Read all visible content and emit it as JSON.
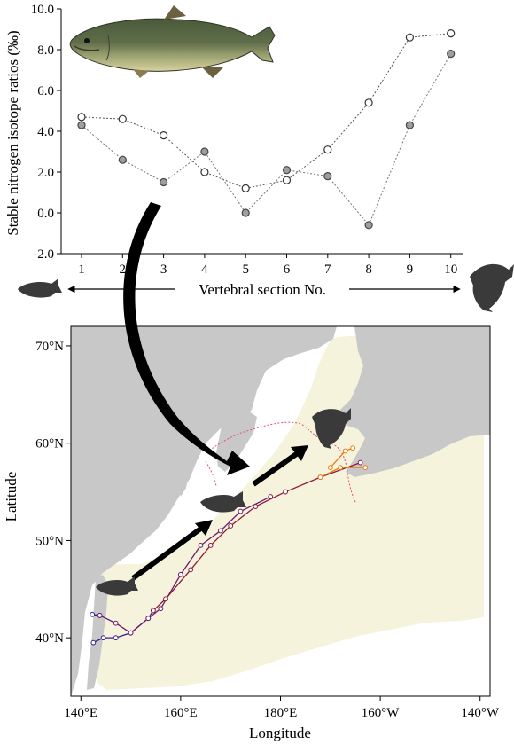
{
  "chart_data": [
    {
      "type": "line",
      "ylabel": "Stable nitrogen isotope ratios (‰)",
      "xlabel": "Vertebral section No.",
      "categories": [
        "1",
        "2",
        "3",
        "4",
        "5",
        "6",
        "7",
        "8",
        "9",
        "10"
      ],
      "yticks": [
        "-2.0",
        "0.0",
        "2.0",
        "4.0",
        "6.0",
        "8.0",
        "10.0"
      ],
      "ylim": [
        -2.0,
        10.0
      ],
      "series": [
        {
          "marker": "open-circle",
          "values": [
            4.7,
            4.6,
            3.8,
            2.0,
            1.2,
            1.6,
            3.1,
            5.4,
            8.6,
            8.8
          ]
        },
        {
          "marker": "filled-circle",
          "values": [
            4.3,
            2.6,
            1.5,
            3.0,
            0.0,
            2.1,
            1.8,
            -0.6,
            4.3,
            7.8
          ]
        }
      ],
      "line_style": "dotted",
      "colors": {
        "open": "#555555",
        "filled": "#777777",
        "filled_fill": "#9e9e9e"
      }
    },
    {
      "type": "line",
      "xlabel": "Longitude",
      "ylabel": "Latitude",
      "xticks": [
        "140°E",
        "160°E",
        "180°E",
        "160°W",
        "140°W"
      ],
      "yticks": [
        "40°N",
        "50°N",
        "60°N",
        "70°N"
      ],
      "xlim": [
        138,
        222
      ],
      "ylim": [
        34,
        72
      ],
      "tracks": [
        {
          "color": "#3b1e8c",
          "points": [
            [
              142.3,
              42.4
            ],
            [
              143.8,
              42.3
            ]
          ]
        },
        {
          "color": "#3b1e8c",
          "points": [
            [
              142.5,
              39.5
            ],
            [
              144.5,
              40.0
            ],
            [
              147,
              40.0
            ],
            [
              150,
              40.5
            ],
            [
              153.5,
              42.0
            ],
            [
              154.5,
              42.8
            ]
          ]
        },
        {
          "color": "#6b1a6b",
          "points": [
            [
              143.8,
              42.3
            ],
            [
              147,
              41.5
            ],
            [
              150,
              40.5
            ],
            [
              153.5,
              42.0
            ],
            [
              156,
              43.0
            ],
            [
              160,
              46.5
            ],
            [
              164,
              49.5
            ],
            [
              168,
              51.0
            ],
            [
              172,
              53.0
            ],
            [
              178,
              54.5
            ]
          ]
        },
        {
          "color": "#8b1a3b",
          "points": [
            [
              154.5,
              42.8
            ],
            [
              157,
              44.0
            ],
            [
              162,
              47.0
            ],
            [
              166,
              49.5
            ],
            [
              170,
              51.5
            ],
            [
              175,
              53.5
            ],
            [
              181,
              55.0
            ],
            [
              188,
              56.5
            ],
            [
              196,
              58.0
            ]
          ]
        },
        {
          "color": "#e87a10",
          "points": [
            [
              188,
              56.5
            ],
            [
              192,
              57.5
            ],
            [
              197,
              57.5
            ]
          ]
        },
        {
          "color": "#e87a10",
          "points": [
            [
              190,
              57.5
            ],
            [
              193,
              59.2
            ],
            [
              194.5,
              59.5
            ]
          ]
        }
      ],
      "colors": {
        "land": "#c8c8c8",
        "habitat": "#f5f3dc",
        "boundary": "#e8506a",
        "arrow": "#000000",
        "frame": "#000000"
      }
    }
  ]
}
